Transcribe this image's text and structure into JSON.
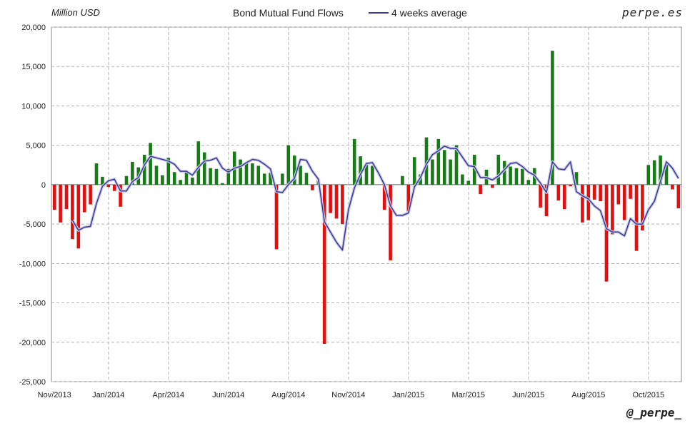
{
  "header": {
    "unit_label": "Million USD",
    "title": "Bond Mutual Fund Flows",
    "legend_label": "4 weeks average",
    "brand": "perpe.es"
  },
  "footer": {
    "handle": "@_perpe_"
  },
  "colors": {
    "positive": "#1a7a1a",
    "negative": "#e01010",
    "average_line": "#3b3b94",
    "grid": "#aaaaaa"
  },
  "chart_data": {
    "type": "bar",
    "title": "Bond Mutual Fund Flows",
    "ylabel": "Million USD",
    "ylim": [
      -25000,
      20000
    ],
    "yticks": [
      20000,
      15000,
      10000,
      5000,
      0,
      -5000,
      -10000,
      -15000,
      -20000,
      -25000
    ],
    "ytick_labels": [
      "20,000",
      "15,000",
      "10,000",
      "5,000",
      "0",
      "-5,000",
      "-10,000",
      "-15,000",
      "-20,000",
      "-25,000"
    ],
    "xticks": [
      {
        "label": "Nov/2013",
        "index": 0
      },
      {
        "label": "Jan/2014",
        "index": 9
      },
      {
        "label": "Apr/2014",
        "index": 19
      },
      {
        "label": "Jun/2014",
        "index": 29
      },
      {
        "label": "Aug/2014",
        "index": 39
      },
      {
        "label": "Nov/2014",
        "index": 49
      },
      {
        "label": "Jan/2015",
        "index": 59
      },
      {
        "label": "Mar/2015",
        "index": 69
      },
      {
        "label": "Jun/2015",
        "index": 79
      },
      {
        "label": "Aug/2015",
        "index": 89
      },
      {
        "label": "Oct/2015",
        "index": 99
      }
    ],
    "grid": true,
    "legend_position": "top",
    "series": [
      {
        "name": "Bond Mutual Fund Flows",
        "values": [
          -3200,
          -4800,
          -3100,
          -6900,
          -8100,
          -3500,
          -2500,
          2700,
          1000,
          -300,
          -800,
          -2800,
          1100,
          2900,
          2200,
          3800,
          5300,
          2400,
          1200,
          3400,
          1600,
          600,
          1800,
          900,
          5500,
          4100,
          2100,
          2000,
          200,
          2000,
          4200,
          3200,
          2900,
          2700,
          2400,
          1400,
          1500,
          -8200,
          1400,
          5000,
          3700,
          2400,
          1500,
          -700,
          600,
          -20200,
          -3600,
          -4300,
          -5000,
          0,
          5800,
          3600,
          2500,
          2400,
          0,
          -3200,
          -9600,
          0,
          1100,
          -3400,
          3500,
          1300,
          6000,
          3200,
          5800,
          4400,
          3200,
          5000,
          1300,
          500,
          3800,
          -1200,
          1900,
          -400,
          3800,
          3000,
          2300,
          2100,
          2000,
          600,
          2100,
          -2900,
          -4000,
          17000,
          -2000,
          -3100,
          -200,
          1600,
          -4800,
          -4500,
          -1900,
          -2100,
          -12300,
          -6300,
          -2500,
          -4500,
          -1800,
          -8400,
          -5800,
          2500,
          3100,
          3700,
          2600,
          -600,
          -3000
        ],
        "color_positive": "#1a7a1a",
        "color_negative": "#e01010"
      },
      {
        "name": "4 weeks average",
        "type": "line",
        "values": [
          null,
          null,
          null,
          -4500,
          -5800,
          -5400,
          -5300,
          -2400,
          -200,
          500,
          700,
          -800,
          -800,
          400,
          900,
          2500,
          3600,
          3400,
          3200,
          3000,
          2600,
          1700,
          1700,
          1200,
          2200,
          3000,
          3100,
          3400,
          2100,
          1600,
          2100,
          2300,
          2800,
          3200,
          3100,
          2600,
          2000,
          -900,
          -1000,
          0,
          800,
          3200,
          3100,
          1700,
          700,
          -4700,
          -6000,
          -7300,
          -8300,
          -3200,
          -400,
          1300,
          2700,
          2800,
          1500,
          0,
          -2700,
          -3900,
          -3900,
          -3600,
          -300,
          900,
          2600,
          3800,
          4300,
          4900,
          4600,
          4600,
          3500,
          2400,
          2300,
          900,
          900,
          600,
          1100,
          1900,
          2700,
          2800,
          2300,
          1600,
          1200,
          200,
          -1000,
          2900,
          2000,
          1900,
          2900,
          -900,
          -1400,
          -1800,
          -2700,
          -3300,
          -5600,
          -6000,
          -6000,
          -6500,
          -4300,
          -5000,
          -5000,
          -3200,
          -2100,
          400,
          2900,
          2100,
          800
        ]
      }
    ]
  }
}
